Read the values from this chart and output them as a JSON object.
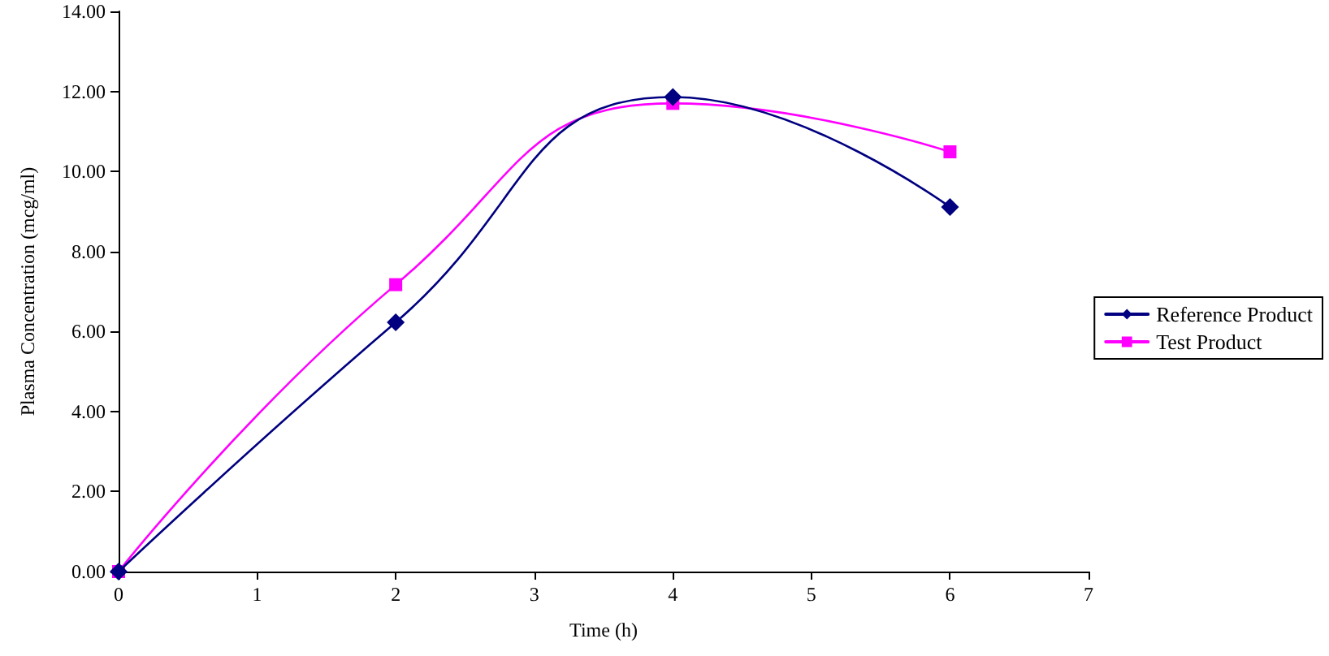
{
  "chart_data": {
    "type": "line",
    "xlabel": "Time (h)",
    "ylabel": "Plasma Concentration (mcg/ml)",
    "x": [
      0,
      2,
      4,
      6
    ],
    "series": [
      {
        "name": "Reference Product",
        "color": "#000080",
        "marker": "diamond",
        "values": [
          0,
          6.23,
          11.86,
          9.11
        ]
      },
      {
        "name": "Test Product",
        "color": "#ff00ff",
        "marker": "square",
        "values": [
          0,
          7.17,
          11.7,
          10.49
        ]
      }
    ],
    "xlim": [
      0,
      7
    ],
    "xticks": [
      0,
      1,
      2,
      3,
      4,
      5,
      6,
      7
    ],
    "ylim": [
      0,
      14
    ],
    "yticks": [
      {
        "value": 0,
        "label": "0.00"
      },
      {
        "value": 2,
        "label": "2.00"
      },
      {
        "value": 4,
        "label": "4.00"
      },
      {
        "value": 6,
        "label": "6.00"
      },
      {
        "value": 8,
        "label": "8.00"
      },
      {
        "value": 10,
        "label": "10.00"
      },
      {
        "value": 12,
        "label": "12.00"
      },
      {
        "value": 14,
        "label": "14.00"
      }
    ],
    "grid": false,
    "legend": "right",
    "line_style": "solid"
  }
}
